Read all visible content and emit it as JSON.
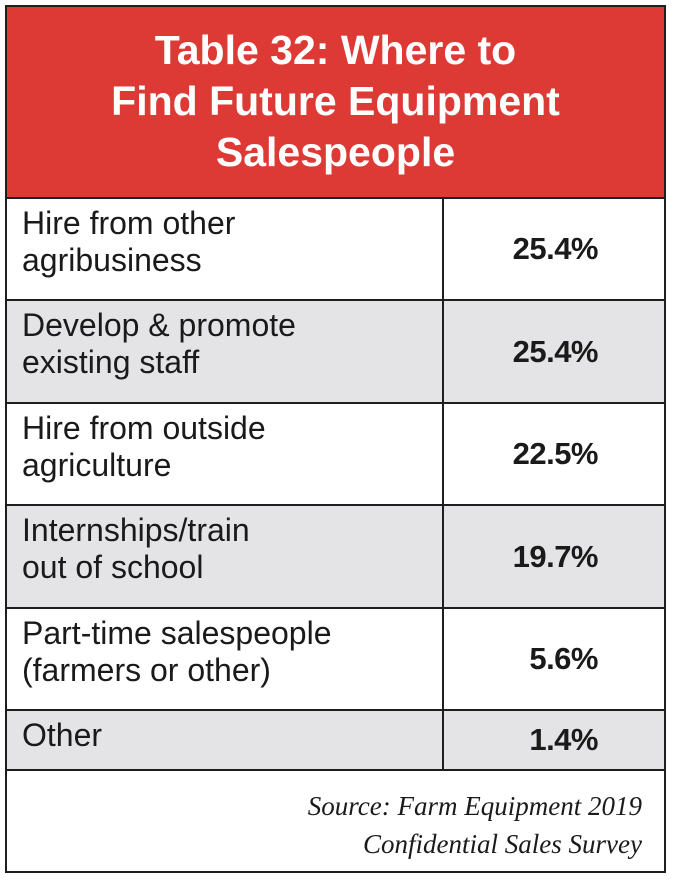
{
  "table": {
    "title_lines": [
      "Table 32: Where to",
      "Find Future Equipment",
      "Salespeople"
    ],
    "rows": [
      {
        "label_lines": [
          "Hire from other",
          "agribusiness"
        ],
        "value": "25.4%"
      },
      {
        "label_lines": [
          "Develop & promote",
          "existing staff"
        ],
        "value": "25.4%"
      },
      {
        "label_lines": [
          "Hire from outside",
          "agriculture"
        ],
        "value": "22.5%"
      },
      {
        "label_lines": [
          "Internships/train",
          "out of school"
        ],
        "value": "19.7%"
      },
      {
        "label_lines": [
          "Part-time salespeople",
          "(farmers or other)"
        ],
        "value": "5.6%"
      },
      {
        "label_lines": [
          "Other"
        ],
        "value": "1.4%"
      }
    ],
    "source_lines": [
      "Source: Farm Equipment 2019",
      "Confidential Sales Survey"
    ]
  },
  "colors": {
    "title_background": "#dd3a36",
    "shaded_row": "#e4e4e6",
    "border": "#1e1e1e"
  }
}
